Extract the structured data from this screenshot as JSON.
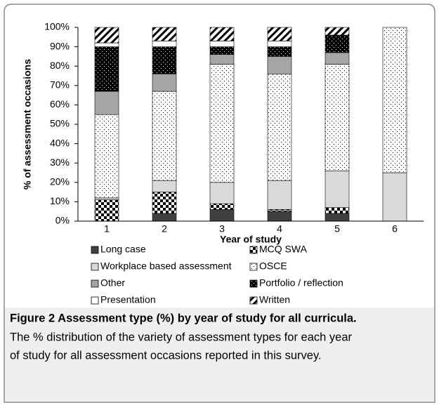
{
  "chart_data": {
    "type": "stacked_bar",
    "ylabel": "% of assessment occasions",
    "xlabel": "Year of study",
    "categories": [
      "1",
      "2",
      "3",
      "4",
      "5",
      "6"
    ],
    "series": [
      {
        "name": "Long case",
        "color": "#404040",
        "pattern": "solid",
        "values": [
          0,
          4,
          6,
          5,
          4,
          0
        ]
      },
      {
        "name": "MCQ SWA",
        "color": "#ffffff",
        "pattern": "checker",
        "values": [
          11,
          11,
          3,
          1,
          3,
          0
        ]
      },
      {
        "name": "Workplace based assessment",
        "color": "#d9d9d9",
        "pattern": "solid",
        "values": [
          1,
          6,
          11,
          15,
          19,
          25
        ]
      },
      {
        "name": "OSCE",
        "color": "#ffffff",
        "pattern": "dots",
        "values": [
          43,
          46,
          61,
          55,
          55,
          75
        ]
      },
      {
        "name": "Other",
        "color": "#a6a6a6",
        "pattern": "solid",
        "values": [
          12,
          9,
          5,
          9,
          6,
          0
        ]
      },
      {
        "name": "Portfolio / reflection",
        "color": "#000000",
        "pattern": "dots",
        "values": [
          23,
          14,
          4,
          5,
          9,
          0
        ]
      },
      {
        "name": "Presentation",
        "color": "#ffffff",
        "pattern": "solid",
        "values": [
          2,
          3,
          3,
          3,
          0,
          0
        ]
      },
      {
        "name": "Written",
        "color": "#ffffff",
        "pattern": "hatch",
        "values": [
          8,
          7,
          7,
          7,
          4,
          0
        ]
      }
    ],
    "ylim": [
      0,
      100
    ],
    "yticks": [
      {
        "value": 0,
        "label": "0%"
      },
      {
        "value": 10,
        "label": "10%"
      },
      {
        "value": 20,
        "label": "20%"
      },
      {
        "value": 30,
        "label": "30%"
      },
      {
        "value": 40,
        "label": "40%"
      },
      {
        "value": 50,
        "label": "50%"
      },
      {
        "value": 60,
        "label": "60%"
      },
      {
        "value": 70,
        "label": "70%"
      },
      {
        "value": 80,
        "label": "80%"
      },
      {
        "value": 90,
        "label": "90%"
      },
      {
        "value": 100,
        "label": "100%"
      }
    ],
    "grid": false,
    "caption": {
      "title": "Figure 2 Assessment type (%) by year of study for all curricula.",
      "lines": [
        "The % distribution of the variety of assessment types for each year",
        "of study for all assessment occasions reported in this survey."
      ]
    }
  }
}
